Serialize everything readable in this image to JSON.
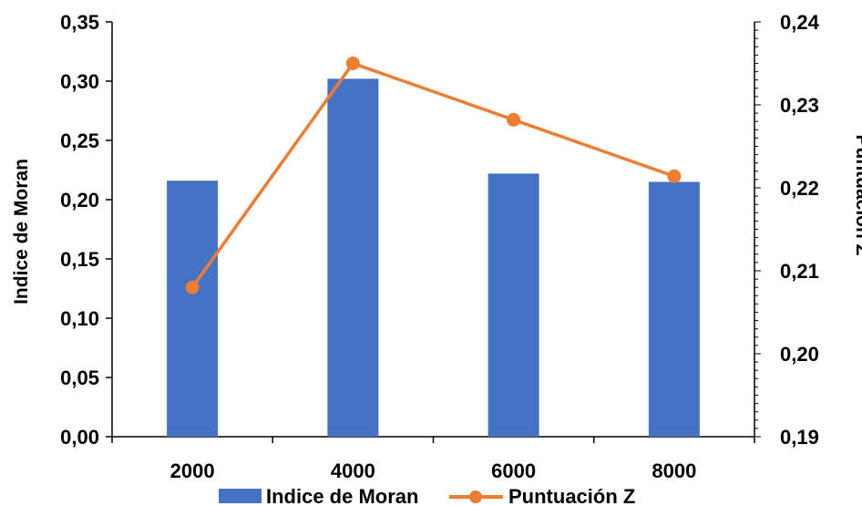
{
  "chart_data": {
    "type": "bar",
    "categories": [
      "2000",
      "4000",
      "6000",
      "8000"
    ],
    "series": [
      {
        "name": "Indice de Moran",
        "type": "bar",
        "axis": "left",
        "color": "#4472C4",
        "values": [
          0.216,
          0.302,
          0.222,
          0.215
        ]
      },
      {
        "name": "Puntuación Z",
        "type": "line",
        "axis": "right",
        "color": "#ED7D31",
        "values": [
          0.208,
          0.235,
          0.2282,
          0.2214
        ]
      }
    ],
    "ylabel": "Indice de Moran",
    "y2label": "Puntuación Z",
    "ylim": [
      0,
      0.35
    ],
    "y2lim": [
      0.19,
      0.24
    ],
    "yticks": [
      "0,00",
      "0,05",
      "0,10",
      "0,15",
      "0,20",
      "0,25",
      "0,30",
      "0,35"
    ],
    "y2ticks": [
      "0,19",
      "0,20",
      "0,21",
      "0,22",
      "0,23",
      "0,24"
    ],
    "legend": "bottom",
    "grid": false
  }
}
